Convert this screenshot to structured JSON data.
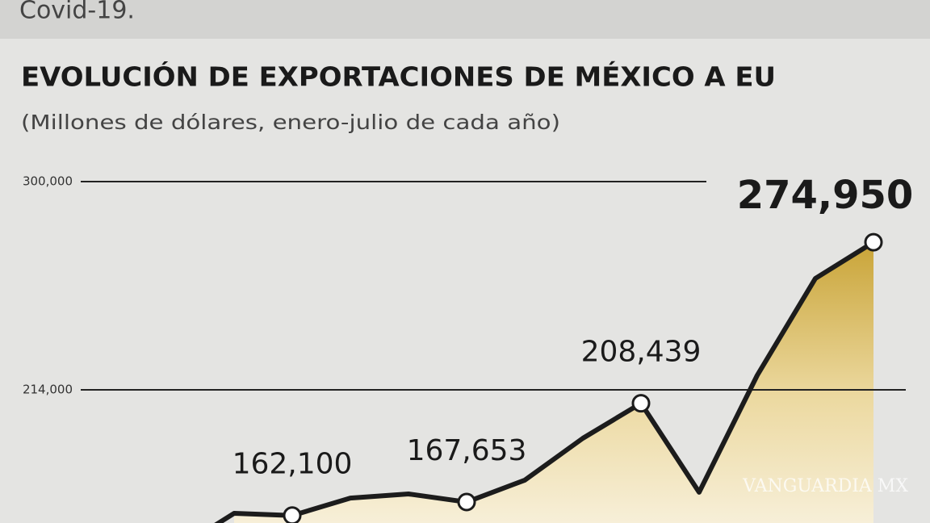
{
  "header_text": "Covid-19.",
  "watermark": "VANGUARDIA MX",
  "chart_data": {
    "type": "area",
    "title": "EVOLUCIÓN DE EXPORTACIONES DE MÉXICO A EU",
    "subtitle": "(Millones de dólares, enero-julio de cada año)",
    "categories": [
      null,
      null,
      null,
      null,
      null,
      null,
      null,
      null,
      null,
      null,
      null,
      null
    ],
    "values": [
      163000,
      162100,
      169300,
      171000,
      167653,
      176700,
      194000,
      208439,
      171700,
      220000,
      260000,
      274950
    ],
    "value_labels": [
      null,
      "162,100",
      null,
      null,
      "167,653",
      null,
      null,
      "208,439",
      null,
      null,
      null,
      "274,950"
    ],
    "color": "#1c1c1c",
    "ylim": [
      159000,
      300000
    ],
    "yticks": [
      {
        "value": 214000,
        "label": "214,000"
      },
      {
        "value": 300000,
        "label": "300,000"
      }
    ],
    "grid": true
  }
}
